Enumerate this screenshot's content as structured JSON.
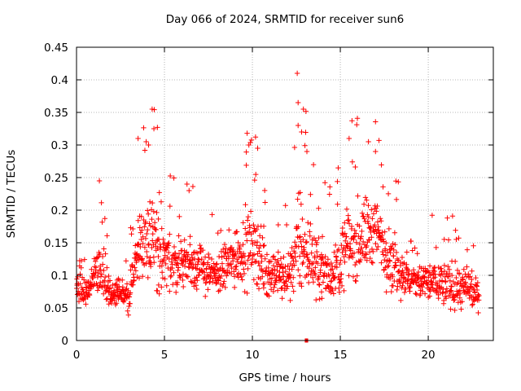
{
  "chart_data": {
    "type": "scatter",
    "title": "Day 066 of 2024, SRMTID for receiver sun6",
    "xlabel": "GPS time / hours",
    "ylabel": "SRMTID / TECUs",
    "xlim": [
      0,
      23.7
    ],
    "ylim": [
      0,
      0.45
    ],
    "xticks": [
      "0",
      "5",
      "10",
      "15",
      "20"
    ],
    "yticks": [
      "0",
      "0.05",
      "0.1",
      "0.15",
      "0.2",
      "0.25",
      "0.3",
      "0.35",
      "0.4",
      "0.45"
    ],
    "grid": true,
    "marker": "+",
    "color": "#ff0000",
    "series_profile": [
      {
        "x": 0.0,
        "median": 0.08,
        "spread": 0.03
      },
      {
        "x": 0.8,
        "median": 0.08,
        "spread": 0.03
      },
      {
        "x": 1.3,
        "median": 0.11,
        "spread": 0.07
      },
      {
        "x": 2.0,
        "median": 0.07,
        "spread": 0.03
      },
      {
        "x": 3.0,
        "median": 0.07,
        "spread": 0.04
      },
      {
        "x": 3.5,
        "median": 0.14,
        "spread": 0.07
      },
      {
        "x": 4.2,
        "median": 0.17,
        "spread": 0.1
      },
      {
        "x": 5.0,
        "median": 0.12,
        "spread": 0.07
      },
      {
        "x": 6.5,
        "median": 0.12,
        "spread": 0.06
      },
      {
        "x": 8.0,
        "median": 0.1,
        "spread": 0.04
      },
      {
        "x": 9.0,
        "median": 0.13,
        "spread": 0.07
      },
      {
        "x": 10.0,
        "median": 0.15,
        "spread": 0.09
      },
      {
        "x": 11.0,
        "median": 0.1,
        "spread": 0.05
      },
      {
        "x": 12.0,
        "median": 0.1,
        "spread": 0.05
      },
      {
        "x": 12.7,
        "median": 0.15,
        "spread": 0.12
      },
      {
        "x": 13.5,
        "median": 0.12,
        "spread": 0.07
      },
      {
        "x": 14.5,
        "median": 0.1,
        "spread": 0.06
      },
      {
        "x": 15.5,
        "median": 0.15,
        "spread": 0.09
      },
      {
        "x": 17.0,
        "median": 0.17,
        "spread": 0.08
      },
      {
        "x": 18.0,
        "median": 0.12,
        "spread": 0.07
      },
      {
        "x": 19.0,
        "median": 0.09,
        "spread": 0.04
      },
      {
        "x": 20.5,
        "median": 0.09,
        "spread": 0.05
      },
      {
        "x": 22.0,
        "median": 0.08,
        "spread": 0.05
      },
      {
        "x": 22.9,
        "median": 0.07,
        "spread": 0.03
      }
    ],
    "outliers": [
      {
        "x": 12.55,
        "y": 0.41
      },
      {
        "x": 12.6,
        "y": 0.365
      },
      {
        "x": 12.9,
        "y": 0.355
      },
      {
        "x": 12.6,
        "y": 0.33
      },
      {
        "x": 12.8,
        "y": 0.32
      },
      {
        "x": 4.3,
        "y": 0.355
      },
      {
        "x": 4.4,
        "y": 0.325
      },
      {
        "x": 4.6,
        "y": 0.327
      },
      {
        "x": 4.1,
        "y": 0.3
      },
      {
        "x": 3.5,
        "y": 0.31
      },
      {
        "x": 9.7,
        "y": 0.318
      },
      {
        "x": 9.8,
        "y": 0.3
      },
      {
        "x": 10.3,
        "y": 0.295
      },
      {
        "x": 15.5,
        "y": 0.31
      },
      {
        "x": 16.6,
        "y": 0.305
      },
      {
        "x": 17.2,
        "y": 0.307
      },
      {
        "x": 17.0,
        "y": 0.29
      },
      {
        "x": 1.3,
        "y": 0.245
      },
      {
        "x": 13.1,
        "y": 0.29
      },
      {
        "x": 6.4,
        "y": 0.23
      }
    ],
    "x_range_points": [
      0.0,
      22.9
    ]
  }
}
